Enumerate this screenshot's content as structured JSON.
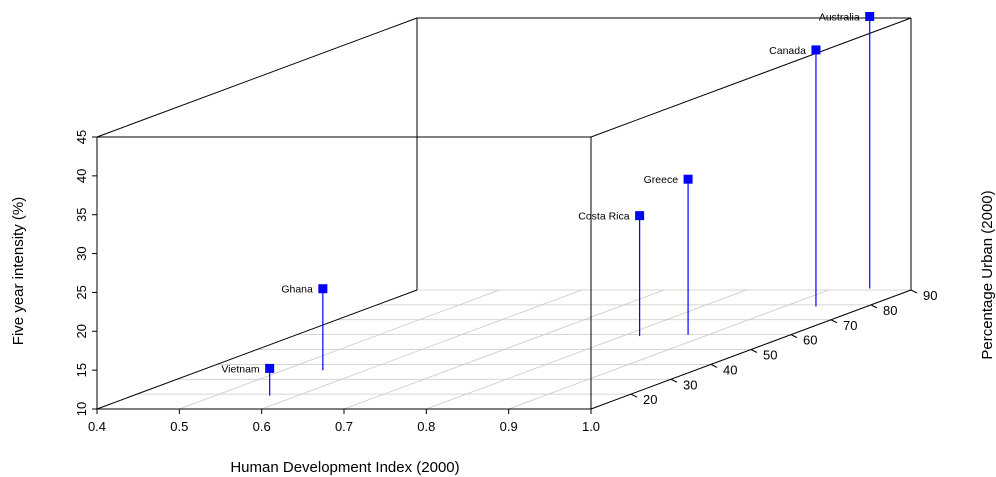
{
  "chart_data": {
    "type": "scatter",
    "title": "",
    "xlabel": "Human Development Index (2000)",
    "ylabel": "Percentage Urban (2000)",
    "zlabel": "Five year intensity (%)",
    "xlim": [
      0.4,
      1.0
    ],
    "ylim": [
      10,
      90
    ],
    "zlim": [
      10,
      45
    ],
    "x_ticks": [
      "0.4",
      "0.5",
      "0.6",
      "0.7",
      "0.8",
      "0.9",
      "1.0"
    ],
    "y_ticks": [
      "20",
      "30",
      "40",
      "50",
      "60",
      "70",
      "80",
      "90"
    ],
    "z_ticks": [
      "10",
      "15",
      "20",
      "25",
      "30",
      "35",
      "40",
      "45"
    ],
    "grid": true,
    "point_color": "#0000ff",
    "points": [
      {
        "label": "Vietnam",
        "x": 0.566,
        "y": 19,
        "z": 13.5
      },
      {
        "label": "Ghana",
        "x": 0.548,
        "y": 36,
        "z": 20.5
      },
      {
        "label": "Costa Rica",
        "x": 0.821,
        "y": 59,
        "z": 25.5
      },
      {
        "label": "Greece",
        "x": 0.875,
        "y": 60,
        "z": 30.0
      },
      {
        "label": "Canada",
        "x": 0.938,
        "y": 79,
        "z": 43.0
      },
      {
        "label": "Australia",
        "x": 0.945,
        "y": 91,
        "z": 45.0
      }
    ]
  }
}
